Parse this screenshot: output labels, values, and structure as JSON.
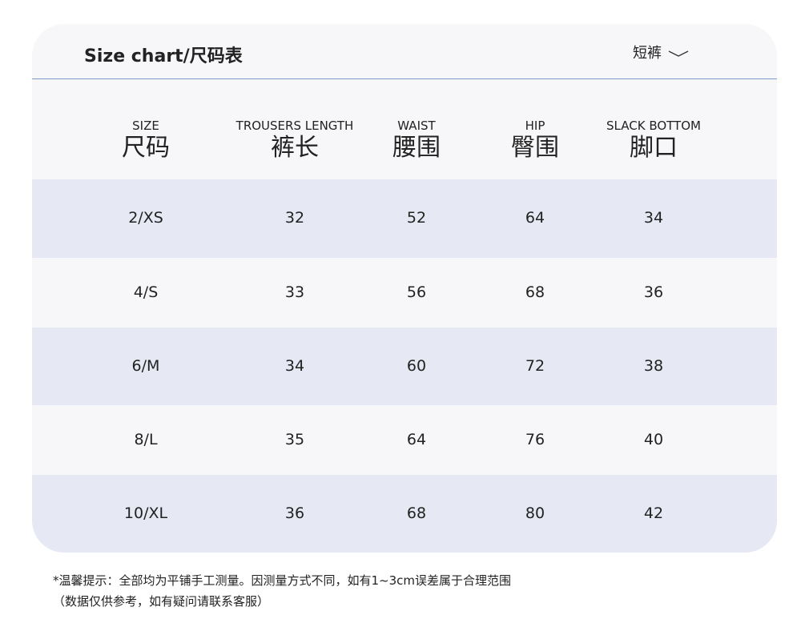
{
  "header": {
    "title": "Size chart/尺码表",
    "dropdown": "短裤"
  },
  "table": {
    "columns": [
      {
        "en": "SIZE",
        "zh": "尺码"
      },
      {
        "en": "TROUSERS LENGTH",
        "zh": "裤长"
      },
      {
        "en": "WAIST",
        "zh": "腰围"
      },
      {
        "en": "HIP",
        "zh": "臀围"
      },
      {
        "en": "SLACK BOTTOM",
        "zh": "脚口"
      }
    ],
    "rows": [
      [
        "2/XS",
        "32",
        "52",
        "64",
        "34"
      ],
      [
        "4/S",
        "33",
        "56",
        "68",
        "36"
      ],
      [
        "6/M",
        "34",
        "60",
        "72",
        "38"
      ],
      [
        "8/L",
        "35",
        "64",
        "76",
        "40"
      ],
      [
        "10/XL",
        "36",
        "68",
        "80",
        "42"
      ]
    ]
  },
  "notes": [
    "*温馨提示：全部均为平铺手工测量。因测量方式不同，如有1~3cm误差属于合理范围",
    "（数据仅供参考，如有疑问请联系客服）"
  ]
}
